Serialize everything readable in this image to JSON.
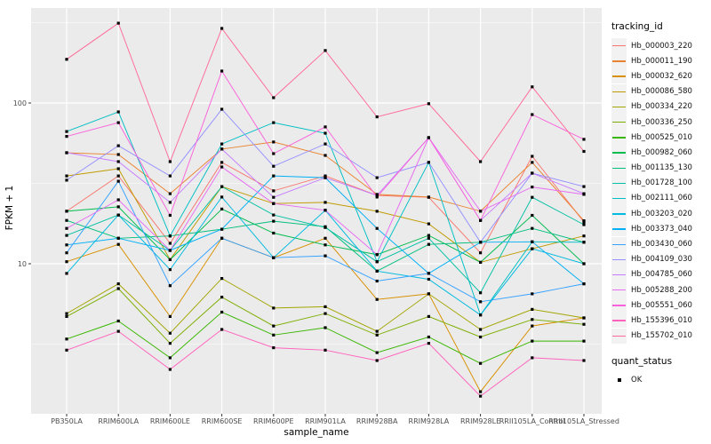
{
  "chart_data": {
    "type": "line",
    "xlabel": "sample_name",
    "ylabel": "FPKM + 1",
    "y_scale": "log10",
    "y_ticks": [
      100,
      10
    ],
    "y_tick_labels": [
      "100",
      "10"
    ],
    "y_minor_ticks": [
      3.162,
      31.62,
      316.2
    ],
    "ylim": [
      1.2,
      380
    ],
    "grid": true,
    "panel_bg": "#EBEBEB",
    "grid_color": "#FFFFFF",
    "tick_label_color": "#4D4D4D",
    "point_marker": "black-square",
    "legend_position": "right",
    "x_categories": [
      "PB350LA",
      "RRIM600LA",
      "RRIM600LE",
      "RRIM600SE",
      "RRIM600PE",
      "RRIM901LA",
      "RRIM928BA",
      "RRIM928LA",
      "RRIM928LE",
      "RRII105LA_Control",
      "RRII105LA_Stressed"
    ],
    "series": [
      {
        "name": "Hb_000003_220",
        "color": "#F8766D",
        "values": [
          21.2,
          35.2,
          13.4,
          42.7,
          28.4,
          35.2,
          26.6,
          25.9,
          11.7,
          46.6,
          18.2
        ]
      },
      {
        "name": "Hb_000011_190",
        "color": "#EA8331",
        "values": [
          49.0,
          47.8,
          27.3,
          51.7,
          57.2,
          47.2,
          27.0,
          26.0,
          21.2,
          42.7,
          18.5
        ]
      },
      {
        "name": "Hb_000032_620",
        "color": "#D89000",
        "values": [
          10.3,
          13.2,
          4.7,
          14.4,
          10.9,
          14.4,
          6.0,
          6.5,
          1.6,
          4.1,
          4.6
        ]
      },
      {
        "name": "Hb_000086_580",
        "color": "#C09B00",
        "values": [
          35.2,
          39.0,
          10.6,
          30.2,
          23.7,
          24.1,
          21.2,
          17.7,
          10.2,
          12.4,
          14.9
        ]
      },
      {
        "name": "Hb_000334_220",
        "color": "#A3A500",
        "values": [
          4.9,
          7.5,
          3.7,
          8.1,
          5.3,
          5.4,
          3.8,
          6.5,
          3.9,
          5.2,
          4.6
        ]
      },
      {
        "name": "Hb_000336_250",
        "color": "#7CAE00",
        "values": [
          4.7,
          7.0,
          3.2,
          6.2,
          4.1,
          4.9,
          3.6,
          4.7,
          3.5,
          4.5,
          4.2
        ]
      },
      {
        "name": "Hb_000525_010",
        "color": "#39B600",
        "values": [
          3.4,
          4.4,
          2.6,
          5.0,
          3.6,
          4.0,
          2.8,
          3.5,
          2.4,
          3.3,
          3.3
        ]
      },
      {
        "name": "Hb_000982_060",
        "color": "#00BB4E",
        "values": [
          21.2,
          22.6,
          10.6,
          21.9,
          15.5,
          13.1,
          11.4,
          15.0,
          10.2,
          20.0,
          10.0
        ]
      },
      {
        "name": "Hb_001135_130",
        "color": "#00BF7D",
        "values": [
          18.6,
          14.4,
          14.9,
          16.4,
          18.4,
          17.0,
          9.0,
          13.2,
          13.6,
          16.6,
          13.6
        ]
      },
      {
        "name": "Hb_001728_100",
        "color": "#00C1A3",
        "values": [
          15.0,
          20.1,
          12.1,
          30.2,
          20.1,
          16.8,
          10.3,
          14.4,
          6.6,
          25.9,
          17.5
        ]
      },
      {
        "name": "Hb_002111_060",
        "color": "#00BFC4",
        "values": [
          66.5,
          88.0,
          14.9,
          55.6,
          75.5,
          64.9,
          10.3,
          42.7,
          4.8,
          13.7,
          13.6
        ]
      },
      {
        "name": "Hb_003203_020",
        "color": "#00BAE0",
        "values": [
          8.7,
          20.1,
          9.2,
          26.0,
          10.9,
          21.5,
          9.0,
          8.0,
          4.8,
          12.4,
          10.0
        ]
      },
      {
        "name": "Hb_003373_040",
        "color": "#00B0F6",
        "values": [
          13.1,
          14.4,
          12.1,
          16.4,
          35.2,
          34.3,
          16.6,
          8.7,
          13.6,
          13.7,
          7.5
        ]
      },
      {
        "name": "Hb_003430_060",
        "color": "#35A2FF",
        "values": [
          11.7,
          32.6,
          7.3,
          14.4,
          10.9,
          11.2,
          7.8,
          8.7,
          5.8,
          6.5,
          7.5
        ]
      },
      {
        "name": "Hb_004109_030",
        "color": "#9590FF",
        "values": [
          33.1,
          54.2,
          35.2,
          91.5,
          40.4,
          55.6,
          34.3,
          42.7,
          13.6,
          36.6,
          30.2
        ]
      },
      {
        "name": "Hb_004785_060",
        "color": "#C77CFF",
        "values": [
          49.1,
          43.2,
          24.1,
          51.7,
          25.9,
          34.3,
          26.6,
          60.9,
          18.6,
          36.6,
          27.3
        ]
      },
      {
        "name": "Hb_005288_200",
        "color": "#E76BF3",
        "values": [
          16.6,
          25.0,
          12.1,
          40.0,
          23.7,
          21.5,
          11.4,
          60.9,
          21.2,
          30.0,
          27.0
        ]
      },
      {
        "name": "Hb_005551_060",
        "color": "#FA62DB",
        "values": [
          62.0,
          75.5,
          20.0,
          158.0,
          48.4,
          71.0,
          26.0,
          60.9,
          18.6,
          84.8,
          59.4
        ]
      },
      {
        "name": "Hb_155396_010",
        "color": "#FF62BC",
        "values": [
          2.9,
          3.8,
          2.2,
          3.9,
          3.0,
          2.9,
          2.5,
          3.2,
          1.5,
          2.6,
          2.5
        ]
      },
      {
        "name": "Hb_155702_010",
        "color": "#FF6A98",
        "values": [
          187.0,
          314.0,
          43.2,
          291.0,
          108.0,
          212.0,
          82.0,
          99.0,
          43.2,
          126.0,
          50.0
        ]
      }
    ]
  },
  "legend": {
    "tracking_id_title": "tracking_id",
    "quant_status_title": "quant_status",
    "quant_status_items": [
      "OK"
    ]
  }
}
